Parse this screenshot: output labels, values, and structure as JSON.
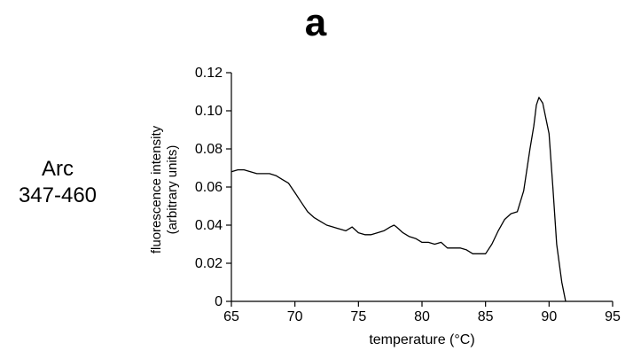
{
  "panel_label": "a",
  "side_label": {
    "line1": "Arc",
    "line2": "347-460"
  },
  "chart_data": {
    "type": "line",
    "title": "",
    "xlabel": "temperature (°C)",
    "ylabel_line1": "fluorescence intensity",
    "ylabel_line2": "(arbitrary units)",
    "xlim": [
      65,
      95
    ],
    "ylim": [
      0,
      0.12
    ],
    "xticks": [
      65,
      70,
      75,
      80,
      85,
      90,
      95
    ],
    "yticks": [
      0,
      0.02,
      0.04,
      0.06,
      0.08,
      0.1,
      0.12
    ],
    "xtick_labels": [
      "65",
      "70",
      "75",
      "80",
      "85",
      "90",
      "95"
    ],
    "ytick_labels": [
      "0",
      "0.02",
      "0.04",
      "0.06",
      "0.08",
      "0.10",
      "0.12"
    ],
    "grid": false,
    "series": [
      {
        "color": "#000000",
        "x": [
          65.0,
          65.5,
          66.0,
          66.5,
          67.0,
          67.5,
          68.0,
          68.5,
          69.0,
          69.5,
          70.0,
          70.5,
          71.0,
          71.5,
          72.0,
          72.5,
          73.0,
          73.5,
          74.0,
          74.5,
          75.0,
          75.5,
          76.0,
          76.5,
          77.0,
          77.5,
          77.8,
          78.0,
          78.5,
          79.0,
          79.5,
          80.0,
          80.5,
          81.0,
          81.5,
          82.0,
          82.5,
          83.0,
          83.5,
          84.0,
          84.5,
          85.0,
          85.5,
          86.0,
          86.5,
          87.0,
          87.5,
          88.0,
          88.5,
          88.8,
          89.0,
          89.2,
          89.5,
          90.0,
          90.3,
          90.6,
          91.0,
          91.3
        ],
        "y": [
          0.068,
          0.069,
          0.069,
          0.068,
          0.067,
          0.067,
          0.067,
          0.066,
          0.064,
          0.062,
          0.057,
          0.052,
          0.047,
          0.044,
          0.042,
          0.04,
          0.039,
          0.038,
          0.037,
          0.039,
          0.036,
          0.035,
          0.035,
          0.036,
          0.037,
          0.039,
          0.04,
          0.039,
          0.036,
          0.034,
          0.033,
          0.031,
          0.031,
          0.03,
          0.031,
          0.028,
          0.028,
          0.028,
          0.027,
          0.025,
          0.025,
          0.025,
          0.03,
          0.037,
          0.043,
          0.046,
          0.047,
          0.058,
          0.08,
          0.092,
          0.103,
          0.107,
          0.104,
          0.088,
          0.06,
          0.03,
          0.01,
          0.0
        ]
      }
    ]
  }
}
